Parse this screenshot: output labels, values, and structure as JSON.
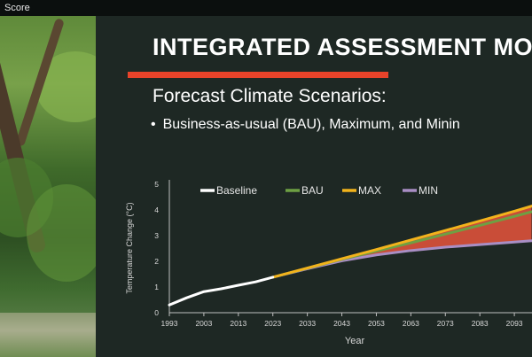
{
  "window": {
    "title": "Score"
  },
  "slide": {
    "title": "INTEGRATED ASSESSMENT MOD",
    "subtitle": "Forecast Climate Scenarios:",
    "bullet": "Business-as-usual (BAU), Maximum, and Minin",
    "accent_color": "#e8432a"
  },
  "chart_data": {
    "type": "line",
    "xlabel": "Year",
    "ylabel": "Temperature Change (°C)",
    "xlim": [
      1993,
      2103
    ],
    "ylim": [
      0,
      5
    ],
    "x_ticks": [
      "1993",
      "2003",
      "2013",
      "2023",
      "2033",
      "2043",
      "2053",
      "2063",
      "2073",
      "2083",
      "2093"
    ],
    "y_ticks": [
      "0",
      "1",
      "2",
      "3",
      "4",
      "5"
    ],
    "legend_placement": "top",
    "grid": false,
    "series": [
      {
        "name": "Baseline",
        "color": "#ffffff",
        "x": [
          1993,
          1998,
          2003,
          2008,
          2013,
          2018,
          2023
        ],
        "y": [
          0.3,
          0.58,
          0.82,
          0.93,
          1.07,
          1.2,
          1.38
        ]
      },
      {
        "name": "BAU",
        "color": "#6ea043",
        "x": [
          2023,
          2033,
          2043,
          2053,
          2063,
          2073,
          2083,
          2093,
          2098
        ],
        "y": [
          1.38,
          1.73,
          2.08,
          2.4,
          2.72,
          3.06,
          3.4,
          3.75,
          3.93
        ]
      },
      {
        "name": "MAX",
        "color": "#f2b31c",
        "x": [
          2023,
          2033,
          2043,
          2053,
          2063,
          2073,
          2083,
          2093,
          2098
        ],
        "y": [
          1.38,
          1.74,
          2.1,
          2.46,
          2.83,
          3.2,
          3.57,
          3.95,
          4.15
        ]
      },
      {
        "name": "MIN",
        "color": "#a98ec4",
        "x": [
          2023,
          2033,
          2043,
          2053,
          2063,
          2073,
          2083,
          2093,
          2098
        ],
        "y": [
          1.38,
          1.71,
          2.02,
          2.25,
          2.42,
          2.55,
          2.65,
          2.75,
          2.8
        ]
      }
    ],
    "fill_between": {
      "upper": "MAX",
      "lower": "MIN",
      "color": "#e8543c"
    }
  }
}
